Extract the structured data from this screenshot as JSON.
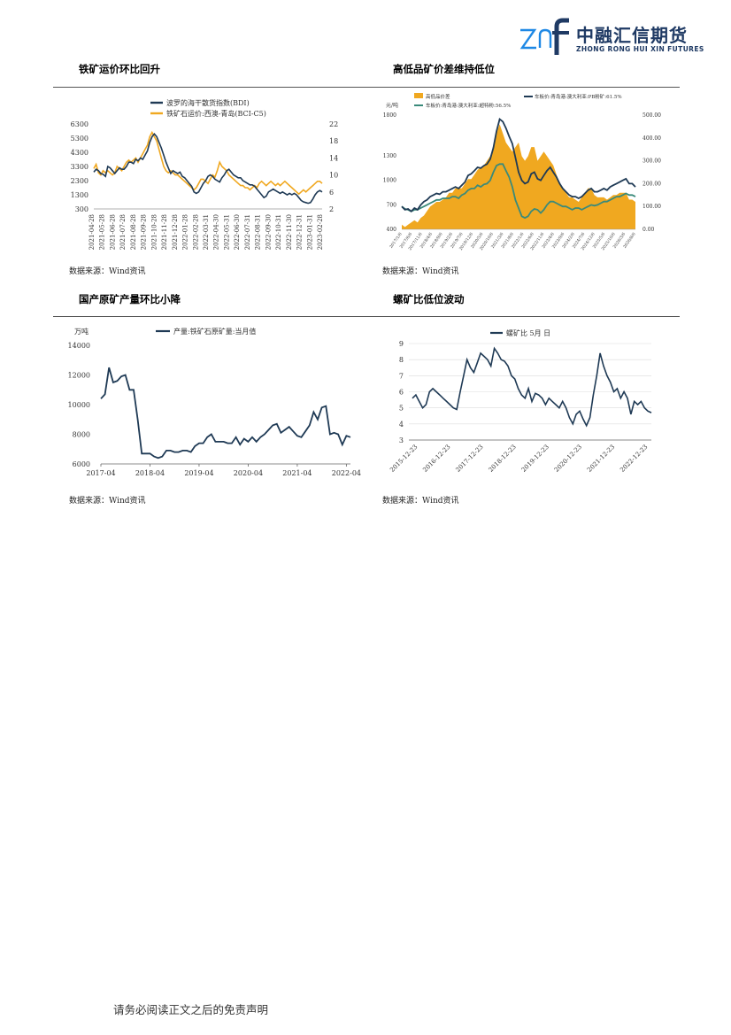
{
  "header": {
    "logo_mark": "znf",
    "logo_cn": "中融汇信期货",
    "logo_en": "ZHONG RONG HUI XIN FUTURES",
    "brand_color": "#1f3a64",
    "accent_color": "#1e88e5"
  },
  "sections": [
    {
      "title": "铁矿运价环比回升",
      "source": "数据来源：Wind资讯"
    },
    {
      "title": "高低品矿价差维持低位",
      "source": "数据来源：Wind资讯"
    },
    {
      "title": "国产原矿产量环比小降",
      "source": "数据来源：Wind资讯"
    },
    {
      "title": "螺矿比低位波动",
      "source": "数据来源：Wind资讯"
    }
  ],
  "footer": {
    "disclaimer": "请务必阅读正文之后的免责声明"
  },
  "chart_data": [
    {
      "type": "line",
      "legend_position": "top",
      "grid": false,
      "series": [
        {
          "name": "波罗的海干散货指数(BDI)",
          "axis": "left",
          "color": "#1f3a55"
        },
        {
          "name": "铁矿石运价:西澳-青岛(BCI-C5)",
          "axis": "right",
          "color": "#f0a820"
        }
      ],
      "x_ticks": [
        "2021-04-28",
        "2021-05-28",
        "2021-06-28",
        "2021-07-28",
        "2021-08-28",
        "2021-09-28",
        "2021-10-28",
        "2021-11-28",
        "2021-12-28",
        "2022-01-28",
        "2022-02-28",
        "2022-03-31",
        "2022-04-30",
        "2022-05-31",
        "2022-06-30",
        "2022-07-31",
        "2022-08-31",
        "2022-09-30",
        "2022-10-31",
        "2022-11-30",
        "2022-12-31",
        "2023-01-31",
        "2023-02-28"
      ],
      "ylim_left": [
        300,
        6300
      ],
      "yticks_left": [
        6300,
        5300,
        4300,
        3300,
        2300,
        1300,
        300
      ],
      "ylim_right": [
        2,
        22
      ],
      "yticks_right": [
        22,
        18,
        14,
        10,
        6,
        2
      ],
      "bdi": [
        2900,
        3100,
        3000,
        2800,
        2750,
        2600,
        3300,
        3200,
        3000,
        2800,
        3000,
        3200,
        3100,
        3100,
        3300,
        3600,
        3600,
        3500,
        3800,
        3700,
        3900,
        3800,
        4100,
        4400,
        5000,
        5400,
        5600,
        5400,
        5000,
        4600,
        4100,
        3600,
        3200,
        2800,
        3000,
        2900,
        2800,
        2900,
        2600,
        2500,
        2300,
        2100,
        1900,
        1500,
        1400,
        1500,
        1800,
        2100,
        2300,
        2600,
        2700,
        2600,
        2400,
        2300,
        2200,
        2500,
        2700,
        3000,
        3100,
        2900,
        2700,
        2600,
        2500,
        2500,
        2300,
        2200,
        2100,
        2000,
        2000,
        1900,
        1700,
        1500,
        1300,
        1100,
        1200,
        1500,
        1600,
        1700,
        1600,
        1500,
        1400,
        1500,
        1400,
        1300,
        1400,
        1300,
        1400,
        1300,
        1100,
        900,
        800,
        750,
        700,
        750,
        1000,
        1300,
        1500,
        1600,
        1500
      ],
      "bci_c5": [
        11.5,
        12.5,
        10.5,
        10,
        11,
        10.5,
        11,
        10.5,
        10,
        10.5,
        12,
        11.5,
        11,
        12,
        13,
        13.5,
        13,
        13.5,
        14,
        13,
        14,
        15,
        16,
        17,
        19,
        20,
        19,
        18,
        16,
        14,
        12,
        11,
        10.5,
        11,
        10.5,
        10,
        10,
        9.5,
        9,
        8.5,
        8,
        7.5,
        7,
        6.5,
        7,
        8,
        9,
        9,
        8.5,
        8,
        9,
        10,
        9.5,
        11,
        13,
        12,
        11.5,
        11,
        10,
        9.5,
        9,
        8.5,
        8,
        7.5,
        7.5,
        7,
        7,
        6.5,
        7,
        7.5,
        7,
        8,
        8.5,
        8,
        7.5,
        8,
        8.5,
        8,
        7.5,
        8,
        7.5,
        8,
        8.5,
        8,
        7.5,
        7,
        6.5,
        6,
        5.5,
        6,
        6.5,
        6,
        6.5,
        7,
        7.5,
        8,
        8.5,
        8.5,
        8
      ]
    },
    {
      "type": "area",
      "legend_position": "top",
      "grid": false,
      "series": [
        {
          "name": "高低品价差",
          "axis": "right",
          "color": "#f0a820",
          "kind": "area"
        },
        {
          "name": "车板价:青岛港:澳大利亚:PB粉矿:61.5%",
          "axis": "left",
          "color": "#1f3a55",
          "kind": "line"
        },
        {
          "name": "车板价:青岛港:澳大利亚:超特粉:56.5%",
          "axis": "left",
          "color": "#3a8a7a",
          "kind": "line"
        }
      ],
      "ylabel": "元/吨",
      "ylim_left": [
        400,
        1800
      ],
      "yticks_left": [
        1800,
        1300,
        1000,
        700,
        400
      ],
      "ylim_right": [
        0,
        500
      ],
      "yticks_right": [
        "500.00",
        "400.00",
        "300.00",
        "200.00",
        "100.00",
        "0.00"
      ],
      "x_ticks": [
        "2017/1/6",
        "2017/6/6",
        "2017/11/6",
        "2018/4/6",
        "2018/9/6",
        "2019/2/6",
        "2019/7/6",
        "2019/12/6",
        "2020/5/6",
        "2020/10/6",
        "2021/3/6",
        "2021/8/6",
        "2022/1/6",
        "2022/6/6",
        "2022/11/6",
        "2023/4/6",
        "2023/9/6",
        "2024/2/6",
        "2024/7/6",
        "2024/12/6",
        "2025/5/6",
        "2025/10/6",
        "2026/3/6",
        "2026/8/6"
      ],
      "pb": [
        680,
        640,
        650,
        620,
        660,
        640,
        700,
        740,
        760,
        800,
        820,
        840,
        830,
        860,
        860,
        880,
        900,
        920,
        900,
        940,
        980,
        1060,
        1080,
        1120,
        1160,
        1150,
        1180,
        1200,
        1260,
        1400,
        1600,
        1750,
        1720,
        1640,
        1540,
        1450,
        1280,
        1100,
        1000,
        960,
        980,
        1080,
        1100,
        1020,
        1000,
        1060,
        1120,
        1160,
        1100,
        1040,
        960,
        900,
        860,
        820,
        800,
        800,
        780,
        800,
        840,
        880,
        900,
        860,
        860,
        880,
        900,
        880,
        920,
        940,
        960,
        980,
        1000,
        1020,
        960,
        960,
        920
      ],
      "super": [
        680,
        650,
        640,
        620,
        640,
        640,
        660,
        680,
        700,
        720,
        740,
        760,
        760,
        780,
        780,
        780,
        800,
        800,
        780,
        820,
        840,
        880,
        900,
        900,
        940,
        920,
        950,
        960,
        1000,
        1100,
        1180,
        1200,
        1200,
        1120,
        1040,
        920,
        760,
        660,
        560,
        540,
        560,
        620,
        650,
        640,
        600,
        640,
        700,
        740,
        740,
        720,
        700,
        680,
        680,
        660,
        640,
        660,
        660,
        640,
        660,
        680,
        700,
        690,
        700,
        720,
        740,
        740,
        760,
        780,
        800,
        800,
        820,
        840,
        820,
        820,
        800
      ],
      "spread": [
        20,
        10,
        20,
        30,
        40,
        30,
        50,
        60,
        80,
        100,
        110,
        120,
        120,
        130,
        140,
        160,
        160,
        180,
        180,
        180,
        200,
        220,
        220,
        240,
        260,
        270,
        280,
        300,
        320,
        360,
        420,
        460,
        420,
        380,
        360,
        340,
        360,
        380,
        320,
        300,
        320,
        360,
        360,
        300,
        320,
        340,
        320,
        300,
        280,
        240,
        200,
        180,
        160,
        140,
        140,
        130,
        120,
        140,
        160,
        180,
        180,
        150,
        140,
        140,
        140,
        130,
        140,
        150,
        150,
        160,
        160,
        160,
        130,
        130,
        120
      ]
    },
    {
      "type": "line",
      "legend_position": "top",
      "grid": false,
      "series": [
        {
          "name": "产量:铁矿石原矿量:当月值",
          "color": "#1f3a55"
        }
      ],
      "ylabel": "万吨",
      "ylim": [
        6000,
        14000
      ],
      "yticks": [
        14000,
        12000,
        10000,
        8000,
        6000
      ],
      "x_ticks": [
        "2017-04",
        "2018-04",
        "2019-04",
        "2020-04",
        "2021-04",
        "2022-04"
      ],
      "values": [
        10400,
        10700,
        12500,
        11500,
        11600,
        11900,
        12000,
        11000,
        11000,
        9000,
        6700,
        6700,
        6700,
        6500,
        6400,
        6500,
        6900,
        6900,
        6800,
        6800,
        6900,
        6900,
        6800,
        7200,
        7400,
        7400,
        7800,
        8000,
        7500,
        7500,
        7500,
        7400,
        7400,
        7800,
        7300,
        7700,
        7500,
        7800,
        7500,
        7800,
        8000,
        8300,
        8600,
        8700,
        8100,
        8300,
        8500,
        8200,
        7900,
        7800,
        8200,
        8600,
        9500,
        9000,
        9800,
        9900,
        8000,
        8100,
        8000,
        7300,
        7900,
        7800
      ]
    },
    {
      "type": "line",
      "legend_position": "top",
      "grid": true,
      "series": [
        {
          "name": "螺矿比  5月 日",
          "color": "#1f3a55"
        }
      ],
      "ylim": [
        3,
        9
      ],
      "yticks": [
        9,
        8,
        7,
        6,
        5,
        4,
        3
      ],
      "x_ticks": [
        "2015-12-23",
        "2016-12-23",
        "2017-12-23",
        "2018-12-23",
        "2019-12-23",
        "2020-12-23",
        "2021-12-23",
        "2022-12-23"
      ],
      "values": [
        5.6,
        5.8,
        5.4,
        5.0,
        5.2,
        6.0,
        6.2,
        6.0,
        5.8,
        5.6,
        5.4,
        5.2,
        5.0,
        4.9,
        6.0,
        7.0,
        8.0,
        7.5,
        7.2,
        7.8,
        8.4,
        8.2,
        8.0,
        7.6,
        8.7,
        8.4,
        8.0,
        7.9,
        7.6,
        7.0,
        6.8,
        6.2,
        5.8,
        5.6,
        6.2,
        5.4,
        5.9,
        5.8,
        5.6,
        5.2,
        5.6,
        5.4,
        5.2,
        5.0,
        5.4,
        5.0,
        4.4,
        4.0,
        4.6,
        4.8,
        4.3,
        3.9,
        4.4,
        5.8,
        7.0,
        8.4,
        7.6,
        7.0,
        6.6,
        6.0,
        6.2,
        5.6,
        6.0,
        5.6,
        4.6,
        5.4,
        5.2,
        5.4,
        5.0,
        4.8,
        4.7
      ]
    }
  ]
}
